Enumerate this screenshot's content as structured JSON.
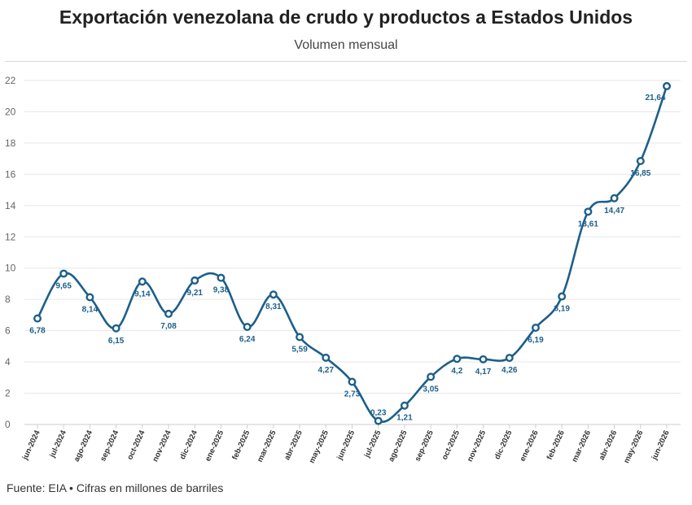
{
  "header": {
    "title": "Exportación venezolana de crudo y productos a Estados Unidos",
    "subtitle": "Volumen mensual"
  },
  "footer": {
    "source": "Fuente: EIA • Cifras en millones de barriles"
  },
  "colors": {
    "line": "#1d5f8a",
    "grid": "#e6e6e6",
    "axis": "#cccccc"
  },
  "chart_data": {
    "type": "line",
    "title": "Exportación venezolana de crudo y productos a Estados Unidos",
    "subtitle": "Volumen mensual",
    "categories": [
      "jun-2024",
      "jul-2024",
      "ago-2024",
      "sep-2024",
      "oct-2024",
      "nov-2024",
      "dic-2024",
      "ene-2025",
      "feb-2025",
      "mar-2025",
      "abr-2025",
      "may-2025",
      "jun-2025",
      "jul-2025",
      "ago-2025",
      "sep-2025",
      "oct-2025",
      "nov-2025",
      "dic-2025",
      "ene-2026",
      "feb-2026",
      "mar-2026",
      "abr-2026",
      "may-2026",
      "jun-2026"
    ],
    "series": [
      {
        "values": [
          6.78,
          9.65,
          8.14,
          6.15,
          9.14,
          7.08,
          9.21,
          9.38,
          6.24,
          8.31,
          5.59,
          4.27,
          2.73,
          0.23,
          1.21,
          3.05,
          4.2,
          4.17,
          4.26,
          6.19,
          8.19,
          13.61,
          14.47,
          16.85,
          21.64
        ],
        "labels": [
          "6,78",
          "9,65",
          "8,14",
          "6,15",
          "9,14",
          "7,08",
          "9,21",
          "9,38",
          "6,24",
          "8,31",
          "5,59",
          "4,27",
          "2,73",
          "0,23",
          "1,21",
          "3,05",
          "4,2",
          "4,17",
          "4,26",
          "6,19",
          "8,19",
          "13,61",
          "14,47",
          "16,85",
          "21,64"
        ]
      }
    ],
    "ylim": [
      0,
      22
    ],
    "yticks": [
      0,
      2,
      4,
      6,
      8,
      10,
      12,
      14,
      16,
      18,
      20,
      22
    ],
    "grid": true,
    "xlabel": "",
    "ylabel": ""
  }
}
